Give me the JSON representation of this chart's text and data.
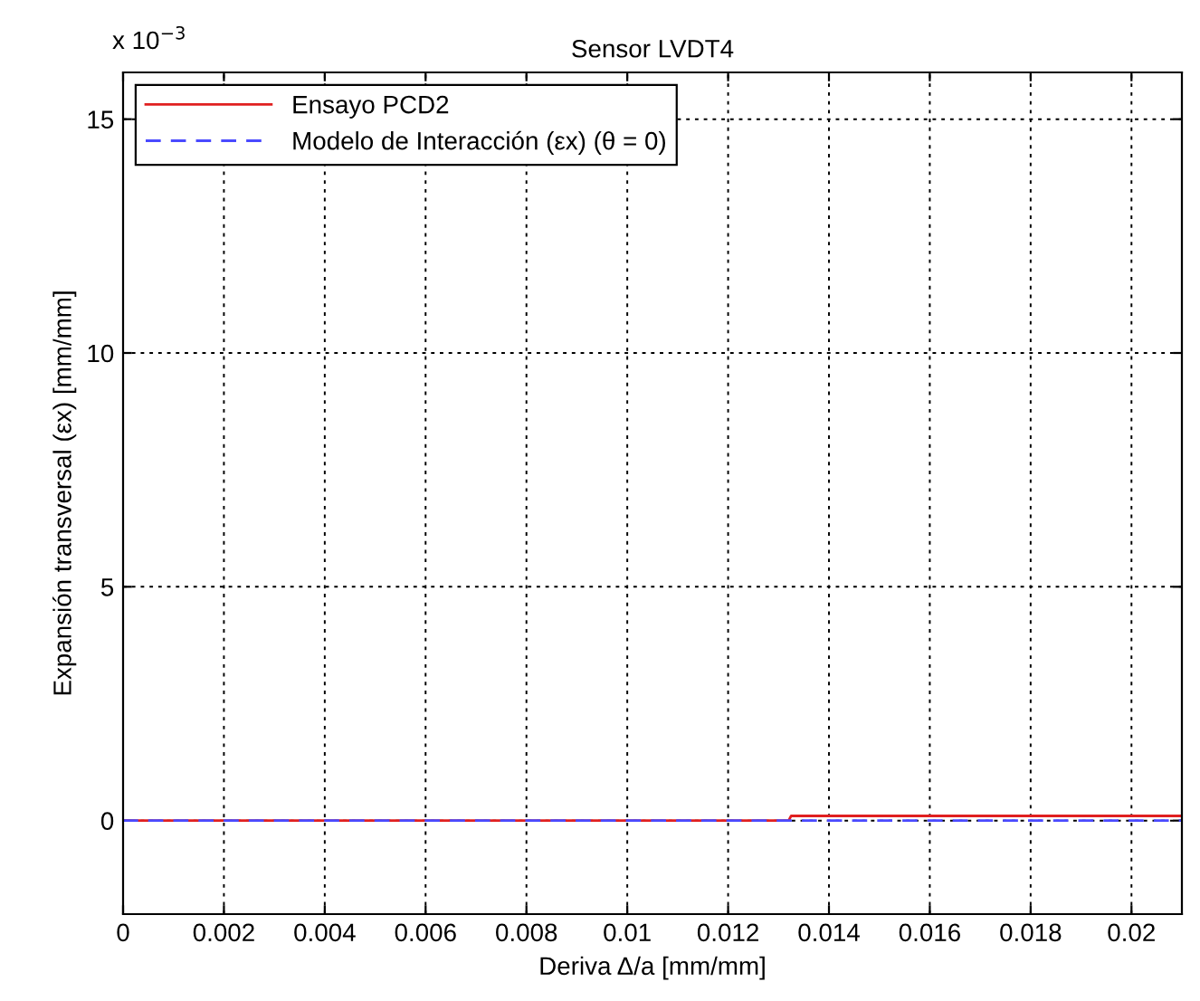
{
  "chart_data": {
    "type": "line",
    "title": "Sensor LVDT4",
    "xlabel": "Deriva Δ/a [mm/mm]",
    "ylabel": "Expansión transversal (εx) [mm/mm]",
    "annotations": [
      "x 10$^{−3}$"
    ],
    "series": [
      {
        "name": "Ensayo PCD2",
        "color": "#e02020",
        "line_style": "solid",
        "x": [
          0,
          0.0132,
          0.01325,
          0.021
        ],
        "values": [
          0,
          0,
          0.1,
          0.1
        ]
      },
      {
        "name": "Modelo de Interacción (εx) (θ = 0)",
        "color": "#4a4aff",
        "line_style": "dashed",
        "x": [
          0,
          0.021
        ],
        "values": [
          0,
          0
        ]
      }
    ],
    "xlim": [
      0,
      0.021
    ],
    "xticks": [
      0,
      0.002,
      0.004,
      0.006,
      0.008,
      0.01,
      0.012,
      0.014,
      0.016,
      0.018,
      0.02
    ],
    "ylim": [
      -2,
      16
    ],
    "yticks": [
      0,
      5,
      10,
      15
    ],
    "grid": true,
    "legend": "top left",
    "marker": "none"
  }
}
